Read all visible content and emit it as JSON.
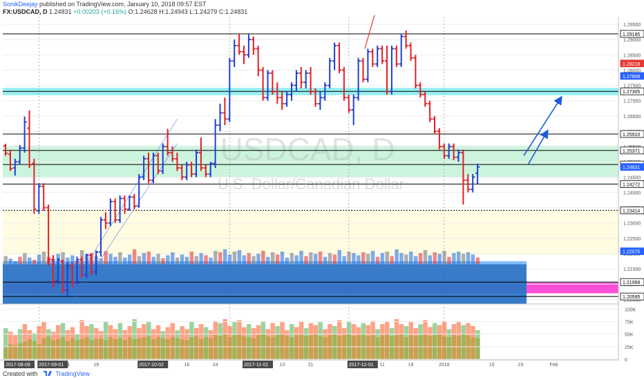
{
  "header": {
    "author": "SonikDeejay",
    "published": "published on TradingView.com, January 10, 2018 09:57 EST",
    "symbol": "FX:USDCAD, D",
    "last": "1.24831",
    "change": "+0.00203 (+0.16%)",
    "ohlc": "O:1.24628 H:1.24943 L:1.24279 C:1.24831"
  },
  "footer": {
    "created_with": "Created with",
    "brand": "TradingView"
  },
  "watermark": {
    "symbol": "USDCAD, D",
    "name": "U.S. Dollar/Canadian Dollar"
  },
  "colors": {
    "bull": "#1e3fd4",
    "bear": "#e31e24",
    "zone_cyan": "#40e0e8",
    "zone_green": "#8ee6b4",
    "zone_yellow": "#fffbd6",
    "zone_magenta": "#ff3bd1",
    "volume_profile": "#1565c0",
    "line_black": "#000000",
    "label_blue": "#2962ff",
    "label_red": "#e53935",
    "arrow_blue": "#1e5ad8",
    "arrow_red": "#e53935"
  },
  "chart_data": {
    "type": "ohlc",
    "title": "",
    "ylim": [
      1.2035,
      1.2975
    ],
    "price_ticks": [
      "1.29500",
      "1.29000",
      "1.28500",
      "1.28000",
      "1.27500",
      "1.27000",
      "1.26500",
      "1.26000",
      "1.25500",
      "1.25000",
      "1.24500",
      "1.24000",
      "1.23500",
      "1.23000",
      "1.22500",
      "1.22000",
      "1.21500",
      "1.21000",
      "1.20500"
    ],
    "price_labels": [
      {
        "text": "1.29185",
        "value": 1.29185,
        "style": "black"
      },
      {
        "text": "1.28218",
        "value": 1.28218,
        "style": "red"
      },
      {
        "text": "1.27808",
        "value": 1.27808,
        "style": "blue"
      },
      {
        "text": "1.27305",
        "value": 1.27305,
        "style": "black"
      },
      {
        "text": "1.25910",
        "value": 1.2591,
        "style": "black"
      },
      {
        "text": "1.25371",
        "value": 1.25371,
        "style": "black"
      },
      {
        "text": "1.24911",
        "value": 1.24911,
        "style": "black"
      },
      {
        "text": "1.24831",
        "value": 1.24831,
        "style": "blue"
      },
      {
        "text": "1.24272",
        "value": 1.24272,
        "style": "black"
      },
      {
        "text": "1.23414",
        "value": 1.23414,
        "style": "black"
      },
      {
        "text": "1.22075",
        "value": 1.22075,
        "style": "blue"
      },
      {
        "text": "1.21068",
        "value": 1.21068,
        "style": "black"
      },
      {
        "text": "1.20595",
        "value": 1.20595,
        "style": "black"
      }
    ],
    "levels": [
      {
        "value": 1.29185,
        "style": "solid"
      },
      {
        "value": 1.27305,
        "style": "solid"
      },
      {
        "value": 1.2591,
        "style": "solid"
      },
      {
        "value": 1.25371,
        "style": "solid"
      },
      {
        "value": 1.24911,
        "style": "solid"
      },
      {
        "value": 1.24272,
        "style": "solid"
      },
      {
        "value": 1.23414,
        "style": "dotted"
      },
      {
        "value": 1.21068,
        "style": "solid"
      },
      {
        "value": 1.20595,
        "style": "solid"
      }
    ],
    "zones": [
      {
        "from": 1.2718,
        "to": 1.2742,
        "color": "cyan"
      },
      {
        "from": 1.2448,
        "to": 1.2553,
        "color": "green"
      },
      {
        "from": 1.2195,
        "to": 1.2341,
        "color": "yellow"
      },
      {
        "from": 1.207,
        "to": 1.2105,
        "color": "magenta"
      }
    ],
    "ohlc": [
      [
        1.2552,
        1.2559,
        1.252,
        1.2528
      ],
      [
        1.2525,
        1.254,
        1.247,
        1.2478
      ],
      [
        1.248,
        1.251,
        1.2455,
        1.25
      ],
      [
        1.25,
        1.2555,
        1.249,
        1.2545
      ],
      [
        1.2545,
        1.2648,
        1.253,
        1.263
      ],
      [
        1.261,
        1.2668,
        1.248,
        1.249
      ],
      [
        1.2495,
        1.251,
        1.233,
        1.2345
      ],
      [
        1.234,
        1.243,
        1.233,
        1.242
      ],
      [
        1.242,
        1.243,
        1.234,
        1.235
      ],
      [
        1.235,
        1.236,
        1.216,
        1.218
      ],
      [
        1.218,
        1.2195,
        1.209,
        1.211
      ],
      [
        1.211,
        1.2185,
        1.21,
        1.218
      ],
      [
        1.2175,
        1.218,
        1.207,
        1.208
      ],
      [
        1.208,
        1.217,
        1.206,
        1.216
      ],
      [
        1.216,
        1.217,
        1.209,
        1.2105
      ],
      [
        1.2105,
        1.219,
        1.21,
        1.218
      ],
      [
        1.218,
        1.219,
        1.212,
        1.213
      ],
      [
        1.213,
        1.22,
        1.212,
        1.2195
      ],
      [
        1.2195,
        1.22,
        1.213,
        1.214
      ],
      [
        1.214,
        1.221,
        1.213,
        1.2205
      ],
      [
        1.2205,
        1.232,
        1.219,
        1.231
      ],
      [
        1.231,
        1.2335,
        1.228,
        1.23
      ],
      [
        1.23,
        1.238,
        1.229,
        1.237
      ],
      [
        1.237,
        1.238,
        1.23,
        1.231
      ],
      [
        1.231,
        1.239,
        1.23,
        1.238
      ],
      [
        1.238,
        1.239,
        1.233,
        1.2345
      ],
      [
        1.2345,
        1.239,
        1.234,
        1.2385
      ],
      [
        1.2385,
        1.2395,
        1.2345,
        1.2355
      ],
      [
        1.2355,
        1.246,
        1.235,
        1.245
      ],
      [
        1.245,
        1.252,
        1.244,
        1.251
      ],
      [
        1.251,
        1.253,
        1.243,
        1.244
      ],
      [
        1.244,
        1.253,
        1.243,
        1.252
      ],
      [
        1.252,
        1.253,
        1.246,
        1.247
      ],
      [
        1.247,
        1.256,
        1.246,
        1.255
      ],
      [
        1.255,
        1.2608,
        1.252,
        1.253
      ],
      [
        1.253,
        1.255,
        1.25,
        1.251
      ],
      [
        1.251,
        1.253,
        1.247,
        1.248
      ],
      [
        1.248,
        1.249,
        1.244,
        1.245
      ],
      [
        1.245,
        1.25,
        1.244,
        1.249
      ],
      [
        1.249,
        1.25,
        1.245,
        1.246
      ],
      [
        1.246,
        1.254,
        1.245,
        1.253
      ],
      [
        1.253,
        1.258,
        1.247,
        1.248
      ],
      [
        1.248,
        1.249,
        1.245,
        1.246
      ],
      [
        1.246,
        1.25,
        1.245,
        1.2495
      ],
      [
        1.2495,
        1.264,
        1.248,
        1.262
      ],
      [
        1.262,
        1.269,
        1.26,
        1.266
      ],
      [
        1.266,
        1.271,
        1.262,
        1.264
      ],
      [
        1.264,
        1.284,
        1.263,
        1.283
      ],
      [
        1.283,
        1.29,
        1.281,
        1.288
      ],
      [
        1.288,
        1.292,
        1.285,
        1.286
      ],
      [
        1.286,
        1.288,
        1.282,
        1.285
      ],
      [
        1.285,
        1.292,
        1.284,
        1.29
      ],
      [
        1.29,
        1.291,
        1.285,
        1.287
      ],
      [
        1.287,
        1.288,
        1.278,
        1.28
      ],
      [
        1.28,
        1.281,
        1.27,
        1.271
      ],
      [
        1.271,
        1.28,
        1.27,
        1.279
      ],
      [
        1.279,
        1.28,
        1.272,
        1.273
      ],
      [
        1.273,
        1.276,
        1.269,
        1.271
      ],
      [
        1.271,
        1.273,
        1.267,
        1.269
      ],
      [
        1.269,
        1.273,
        1.268,
        1.272
      ],
      [
        1.272,
        1.276,
        1.27,
        1.275
      ],
      [
        1.275,
        1.28,
        1.273,
        1.279
      ],
      [
        1.279,
        1.281,
        1.274,
        1.276
      ],
      [
        1.276,
        1.28,
        1.274,
        1.279
      ],
      [
        1.279,
        1.281,
        1.272,
        1.273
      ],
      [
        1.273,
        1.274,
        1.268,
        1.269
      ],
      [
        1.269,
        1.273,
        1.267,
        1.271
      ],
      [
        1.271,
        1.276,
        1.27,
        1.275
      ],
      [
        1.275,
        1.284,
        1.274,
        1.283
      ],
      [
        1.283,
        1.289,
        1.28,
        1.288
      ],
      [
        1.288,
        1.289,
        1.279,
        1.28
      ],
      [
        1.28,
        1.281,
        1.27,
        1.271
      ],
      [
        1.271,
        1.272,
        1.266,
        1.267
      ],
      [
        1.267,
        1.272,
        1.262,
        1.271
      ],
      [
        1.271,
        1.284,
        1.27,
        1.283
      ],
      [
        1.283,
        1.284,
        1.276,
        1.277
      ],
      [
        1.277,
        1.287,
        1.276,
        1.286
      ],
      [
        1.286,
        1.287,
        1.281,
        1.282
      ],
      [
        1.282,
        1.288,
        1.281,
        1.287
      ],
      [
        1.287,
        1.288,
        1.282,
        1.283
      ],
      [
        1.283,
        1.288,
        1.272,
        1.273
      ],
      [
        1.273,
        1.288,
        1.272,
        1.287
      ],
      [
        1.287,
        1.288,
        1.281,
        1.282
      ],
      [
        1.282,
        1.292,
        1.281,
        1.291
      ],
      [
        1.291,
        1.293,
        1.287,
        1.288
      ],
      [
        1.288,
        1.289,
        1.283,
        1.284
      ],
      [
        1.284,
        1.285,
        1.274,
        1.275
      ],
      [
        1.275,
        1.276,
        1.271,
        1.272
      ],
      [
        1.272,
        1.273,
        1.268,
        1.269
      ],
      [
        1.269,
        1.27,
        1.263,
        1.264
      ],
      [
        1.264,
        1.265,
        1.259,
        1.26
      ],
      [
        1.26,
        1.261,
        1.254,
        1.255
      ],
      [
        1.255,
        1.256,
        1.251,
        1.252
      ],
      [
        1.252,
        1.256,
        1.251,
        1.255
      ],
      [
        1.255,
        1.256,
        1.2505,
        1.2515
      ],
      [
        1.2515,
        1.254,
        1.25,
        1.253
      ],
      [
        1.253,
        1.254,
        1.236,
        1.244
      ],
      [
        1.244,
        1.246,
        1.24,
        1.241
      ],
      [
        1.241,
        1.246,
        1.24,
        1.245
      ],
      [
        1.24628,
        1.24943,
        1.24279,
        1.24831
      ]
    ],
    "volume_ticks": [
      "100K",
      "75K",
      "50K",
      "25K",
      "0"
    ],
    "volume_ylim": [
      0,
      110
    ],
    "volume": [
      [
        62,
        25
      ],
      [
        55,
        30
      ],
      [
        48,
        28
      ],
      [
        60,
        32
      ],
      [
        70,
        35
      ],
      [
        58,
        40
      ],
      [
        52,
        36
      ],
      [
        66,
        30
      ],
      [
        74,
        42
      ],
      [
        60,
        45
      ],
      [
        55,
        38
      ],
      [
        68,
        40
      ],
      [
        72,
        44
      ],
      [
        58,
        36
      ],
      [
        64,
        42
      ],
      [
        50,
        38
      ],
      [
        78,
        40
      ],
      [
        66,
        44
      ],
      [
        70,
        38
      ],
      [
        62,
        40
      ],
      [
        56,
        42
      ],
      [
        75,
        38
      ],
      [
        68,
        44
      ],
      [
        60,
        40
      ],
      [
        72,
        42
      ],
      [
        58,
        38
      ],
      [
        66,
        44
      ],
      [
        80,
        40
      ],
      [
        62,
        42
      ],
      [
        70,
        44
      ],
      [
        74,
        46
      ],
      [
        60,
        40
      ],
      [
        68,
        44
      ],
      [
        56,
        42
      ],
      [
        64,
        40
      ],
      [
        72,
        44
      ],
      [
        58,
        42
      ],
      [
        66,
        40
      ],
      [
        60,
        38
      ],
      [
        74,
        44
      ],
      [
        62,
        46
      ],
      [
        70,
        40
      ],
      [
        64,
        44
      ],
      [
        58,
        42
      ],
      [
        76,
        48
      ],
      [
        72,
        46
      ],
      [
        80,
        50
      ],
      [
        66,
        44
      ],
      [
        74,
        48
      ],
      [
        78,
        50
      ],
      [
        64,
        46
      ],
      [
        70,
        44
      ],
      [
        62,
        42
      ],
      [
        68,
        48
      ],
      [
        76,
        50
      ],
      [
        60,
        46
      ],
      [
        72,
        44
      ],
      [
        66,
        48
      ],
      [
        74,
        50
      ],
      [
        58,
        46
      ],
      [
        70,
        44
      ],
      [
        64,
        48
      ],
      [
        76,
        50
      ],
      [
        62,
        46
      ],
      [
        72,
        48
      ],
      [
        68,
        50
      ],
      [
        74,
        46
      ],
      [
        60,
        44
      ],
      [
        70,
        48
      ],
      [
        66,
        50
      ],
      [
        78,
        46
      ],
      [
        62,
        48
      ],
      [
        74,
        50
      ],
      [
        70,
        46
      ],
      [
        64,
        48
      ],
      [
        72,
        50
      ],
      [
        68,
        46
      ],
      [
        76,
        48
      ],
      [
        60,
        44
      ],
      [
        70,
        48
      ],
      [
        74,
        50
      ],
      [
        62,
        46
      ],
      [
        80,
        48
      ],
      [
        70,
        50
      ],
      [
        66,
        44
      ],
      [
        74,
        48
      ],
      [
        62,
        46
      ],
      [
        70,
        48
      ],
      [
        78,
        50
      ],
      [
        64,
        46
      ],
      [
        72,
        48
      ],
      [
        68,
        50
      ],
      [
        76,
        46
      ],
      [
        60,
        44
      ],
      [
        70,
        48
      ],
      [
        74,
        46
      ],
      [
        68,
        50
      ],
      [
        72,
        48
      ],
      [
        66,
        44
      ],
      [
        58,
        42
      ]
    ],
    "date_labels": [
      {
        "text": "2017-08-09",
        "bar": 0,
        "boxed": true
      },
      {
        "text": "2017-09-01",
        "bar": 7,
        "boxed": true
      },
      {
        "text": "11",
        "bar": 13,
        "boxed": false
      },
      {
        "text": "19",
        "bar": 19,
        "boxed": false
      },
      {
        "text": "2017-10-02",
        "bar": 28,
        "boxed": true
      },
      {
        "text": "16",
        "bar": 38,
        "boxed": false
      },
      {
        "text": "24",
        "bar": 44,
        "boxed": false
      },
      {
        "text": "2017-11-01",
        "bar": 50,
        "boxed": true
      },
      {
        "text": "13",
        "bar": 58,
        "boxed": false
      },
      {
        "text": "21",
        "bar": 64,
        "boxed": false
      },
      {
        "text": "2017-12-01",
        "bar": 72,
        "boxed": true
      },
      {
        "text": "11",
        "bar": 79,
        "boxed": false
      },
      {
        "text": "19",
        "bar": 85,
        "boxed": false
      },
      {
        "text": "2018",
        "bar": 92,
        "boxed": false
      },
      {
        "text": "15",
        "bar": 102,
        "boxed": false
      },
      {
        "text": "23",
        "bar": 108,
        "boxed": false
      },
      {
        "text": "Feb",
        "bar": 115,
        "boxed": false
      }
    ],
    "vertical_dotted_bars": [
      7,
      47,
      72,
      92
    ]
  }
}
